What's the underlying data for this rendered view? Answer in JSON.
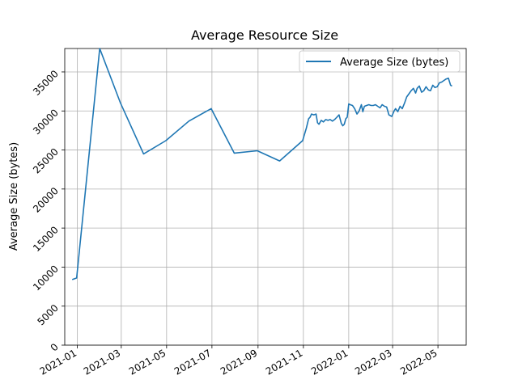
{
  "chart_data": {
    "type": "line",
    "title": "Average Resource Size",
    "xlabel": "",
    "ylabel": "Average Size (bytes)",
    "xlim": [
      "2020-12-15",
      "2022-06-08"
    ],
    "ylim": [
      0,
      38000
    ],
    "grid": true,
    "legend_position": "top-right",
    "x_ticks": [
      "2021-01-01",
      "2021-03-01",
      "2021-05-01",
      "2021-07-01",
      "2021-09-01",
      "2021-11-01",
      "2022-01-01",
      "2022-03-01",
      "2022-05-01"
    ],
    "x_tick_labels": [
      "2021-01",
      "2021-03",
      "2021-05",
      "2021-07",
      "2021-09",
      "2021-11",
      "2022-01",
      "2022-03",
      "2022-05"
    ],
    "y_ticks": [
      0,
      5000,
      10000,
      15000,
      20000,
      25000,
      30000,
      35000
    ],
    "y_tick_labels": [
      "0",
      "5000",
      "10000",
      "15000",
      "20000",
      "25000",
      "30000",
      "35000"
    ],
    "series": [
      {
        "name": "Average Size (bytes)",
        "color": "#1f77b4",
        "x": [
          "2020-12-25",
          "2020-12-31",
          "2021-01-31",
          "2021-02-28",
          "2021-03-31",
          "2021-04-30",
          "2021-05-31",
          "2021-06-30",
          "2021-07-31",
          "2021-08-31",
          "2021-09-30",
          "2021-10-31",
          "2021-11-05",
          "2021-11-08",
          "2021-11-10",
          "2021-11-12",
          "2021-11-15",
          "2021-11-18",
          "2021-11-20",
          "2021-11-22",
          "2021-11-25",
          "2021-11-28",
          "2021-12-01",
          "2021-12-04",
          "2021-12-07",
          "2021-12-10",
          "2021-12-13",
          "2021-12-16",
          "2021-12-19",
          "2021-12-22",
          "2021-12-24",
          "2021-12-26",
          "2021-12-28",
          "2021-12-30",
          "2022-01-01",
          "2022-01-03",
          "2022-01-06",
          "2022-01-09",
          "2022-01-12",
          "2022-01-15",
          "2022-01-18",
          "2022-01-20",
          "2022-01-22",
          "2022-01-25",
          "2022-01-28",
          "2022-01-31",
          "2022-02-03",
          "2022-02-06",
          "2022-02-09",
          "2022-02-12",
          "2022-02-15",
          "2022-02-18",
          "2022-02-21",
          "2022-02-24",
          "2022-02-26",
          "2022-02-28",
          "2022-03-03",
          "2022-03-05",
          "2022-03-08",
          "2022-03-11",
          "2022-03-14",
          "2022-03-17",
          "2022-03-20",
          "2022-03-23",
          "2022-03-26",
          "2022-03-29",
          "2022-04-01",
          "2022-04-03",
          "2022-04-06",
          "2022-04-09",
          "2022-04-12",
          "2022-04-15",
          "2022-04-18",
          "2022-04-21",
          "2022-04-24",
          "2022-04-27",
          "2022-04-30",
          "2022-05-03",
          "2022-05-06",
          "2022-05-09",
          "2022-05-12",
          "2022-05-15",
          "2022-05-18",
          "2022-05-20"
        ],
        "values": [
          8400,
          8600,
          38000,
          31000,
          24500,
          26200,
          28700,
          30300,
          24600,
          24900,
          23600,
          26200,
          27800,
          29000,
          29200,
          29600,
          29500,
          29600,
          28500,
          28300,
          28800,
          28600,
          28900,
          28800,
          28900,
          28700,
          28900,
          29200,
          29500,
          28400,
          28100,
          28300,
          29000,
          29200,
          30900,
          30800,
          30700,
          30300,
          29600,
          30000,
          30800,
          29900,
          30600,
          30700,
          30800,
          30700,
          30700,
          30800,
          30600,
          30400,
          30800,
          30600,
          30500,
          29500,
          29400,
          29300,
          30000,
          30300,
          29900,
          30600,
          30300,
          31000,
          31800,
          32200,
          32600,
          32900,
          32300,
          32900,
          33200,
          32400,
          32600,
          33100,
          32700,
          32600,
          33300,
          33000,
          33100,
          33600,
          33700,
          33900,
          34100,
          34200,
          33300,
          33200
        ]
      }
    ]
  }
}
